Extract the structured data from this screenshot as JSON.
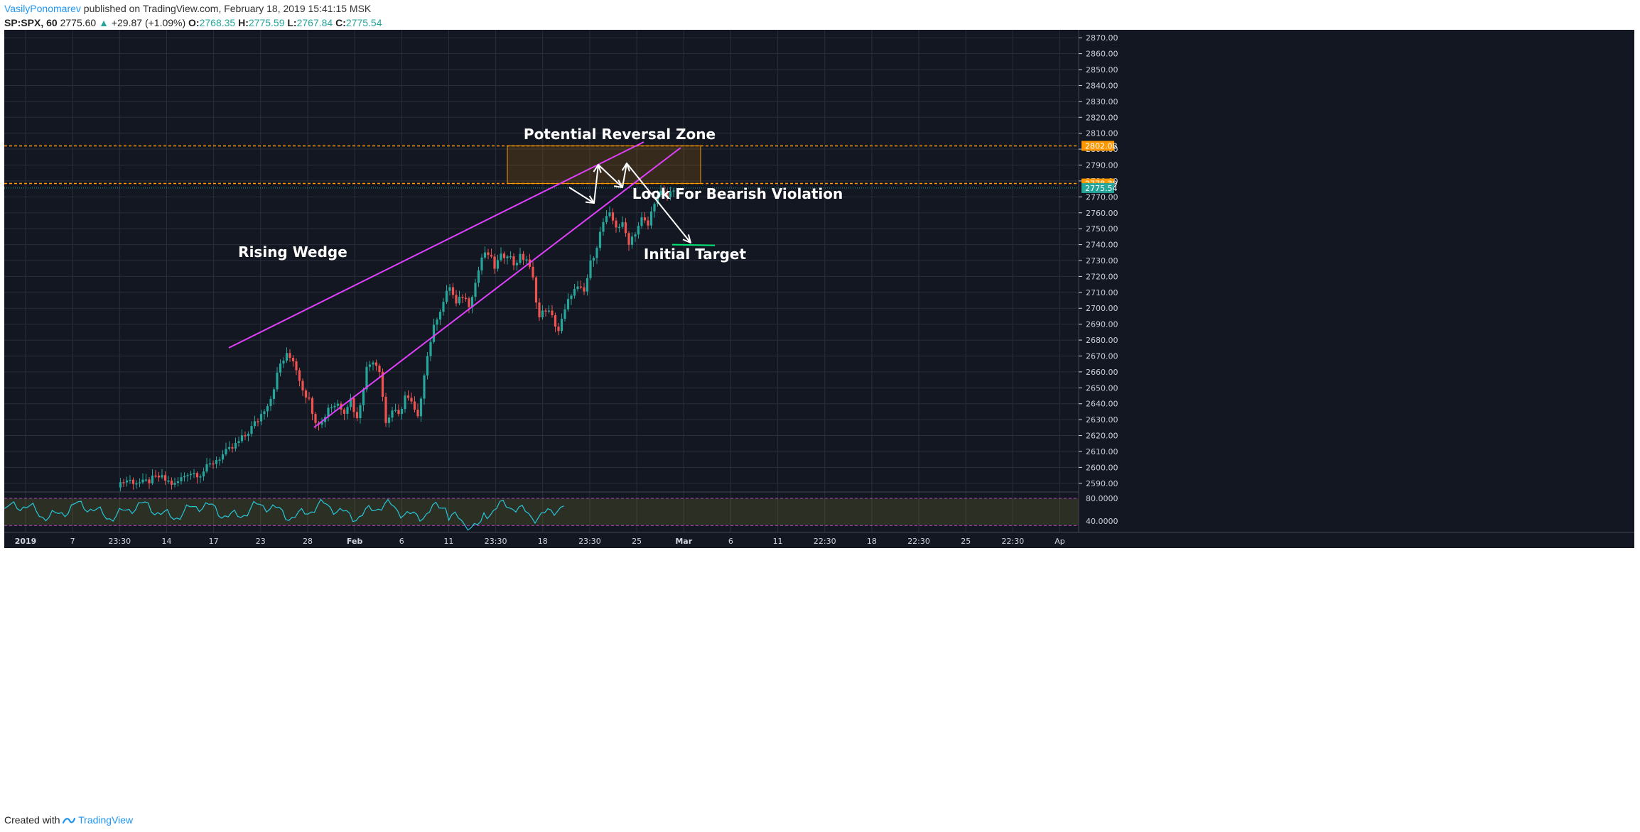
{
  "header": {
    "author": "VasilyPonomarev",
    "published_text": "published on TradingView.com, February 18, 2019 15:41:15 MSK",
    "symbol": "SP:SPX, 60",
    "last": "2775.60",
    "change_arrow": "▲",
    "change": "+29.87 (+1.09%)",
    "o_label": "O:",
    "o_value": "2768.35",
    "h_label": "H:",
    "h_value": "2775.59",
    "l_label": "L:",
    "l_value": "2767.84",
    "c_label": "C:",
    "c_value": "2775.54"
  },
  "footer": {
    "created_with": "Created with",
    "brand": "TradingView"
  },
  "colors": {
    "background": "#131722",
    "grid": "#2a2e39",
    "up": "#26a69a",
    "down": "#ef5350",
    "wedge": "#e040fb",
    "zone": "#ff9800",
    "target": "#00e676",
    "arrow": "#ffffff",
    "rsi": "#26c6da"
  },
  "chart_data": {
    "type": "candlestick",
    "symbol": "SP:SPX",
    "interval": "60",
    "price_axis": {
      "range": [
        2585,
        2875
      ],
      "ticks": [
        2590,
        2600,
        2610,
        2620,
        2630,
        2640,
        2650,
        2660,
        2670,
        2680,
        2690,
        2700,
        2710,
        2720,
        2730,
        2740,
        2750,
        2760,
        2770,
        2780,
        2790,
        2800,
        2810,
        2820,
        2830,
        2840,
        2850,
        2860,
        2870
      ],
      "tick_labels": [
        "2590.00",
        "2600.00",
        "2610.00",
        "2620.00",
        "2630.00",
        "2640.00",
        "2650.00",
        "2660.00",
        "2670.00",
        "2680.00",
        "2690.00",
        "2700.00",
        "2710.00",
        "2720.00",
        "2730.00",
        "2740.00",
        "2750.00",
        "2760.00",
        "2770.00",
        "2780.00",
        "2790.00",
        "2800.00",
        "2810.00",
        "2820.00",
        "2830.00",
        "2840.00",
        "2850.00",
        "2860.00",
        "2870.00"
      ],
      "price_tags": [
        {
          "label": "2802.08",
          "value": 2802.08,
          "color": "#ff9800"
        },
        {
          "label": "2778.39",
          "value": 2778.39,
          "color": "#ff9800"
        },
        {
          "label": "2775.54",
          "value": 2775.54,
          "color": "#26a69a"
        }
      ]
    },
    "time_axis": {
      "labels": [
        "2019",
        "7",
        "23:30",
        "14",
        "17",
        "23",
        "28",
        "Feb",
        "6",
        "11",
        "23:30",
        "18",
        "23:30",
        "25",
        "Mar",
        "6",
        "11",
        "22:30",
        "18",
        "22:30",
        "25",
        "22:30",
        "Ap"
      ],
      "bold": [
        "2019",
        "Feb",
        "Mar"
      ]
    },
    "price_path": [
      [
        0,
        2588
      ],
      [
        5,
        2592
      ],
      [
        10,
        2590
      ],
      [
        15,
        2594
      ],
      [
        20,
        2589
      ],
      [
        24,
        2597
      ],
      [
        28,
        2596
      ],
      [
        33,
        2605
      ],
      [
        38,
        2612
      ],
      [
        42,
        2620
      ],
      [
        46,
        2630
      ],
      [
        50,
        2644
      ],
      [
        53,
        2665
      ],
      [
        55,
        2670
      ],
      [
        57,
        2668
      ],
      [
        58,
        2662
      ],
      [
        60,
        2650
      ],
      [
        62,
        2642
      ],
      [
        64,
        2630
      ],
      [
        66,
        2628
      ],
      [
        68,
        2638
      ],
      [
        71,
        2640
      ],
      [
        73,
        2636
      ],
      [
        75,
        2643
      ],
      [
        77,
        2630
      ],
      [
        80,
        2662
      ],
      [
        82,
        2668
      ],
      [
        84,
        2662
      ],
      [
        86,
        2628
      ],
      [
        88,
        2636
      ],
      [
        90,
        2632
      ],
      [
        92,
        2645
      ],
      [
        94,
        2640
      ],
      [
        96,
        2630
      ],
      [
        98,
        2660
      ],
      [
        100,
        2680
      ],
      [
        102,
        2695
      ],
      [
        104,
        2704
      ],
      [
        106,
        2714
      ],
      [
        108,
        2702
      ],
      [
        110,
        2708
      ],
      [
        112,
        2703
      ],
      [
        114,
        2716
      ],
      [
        116,
        2732
      ],
      [
        118,
        2734
      ],
      [
        120,
        2726
      ],
      [
        122,
        2732
      ],
      [
        124,
        2735
      ],
      [
        126,
        2728
      ],
      [
        128,
        2732
      ],
      [
        130,
        2731
      ],
      [
        132,
        2718
      ],
      [
        134,
        2694
      ],
      [
        136,
        2700
      ],
      [
        138,
        2694
      ],
      [
        140,
        2686
      ],
      [
        142,
        2698
      ],
      [
        144,
        2710
      ],
      [
        146,
        2712
      ],
      [
        148,
        2710
      ],
      [
        150,
        2728
      ],
      [
        152,
        2740
      ],
      [
        154,
        2754
      ],
      [
        156,
        2758
      ],
      [
        158,
        2752
      ],
      [
        160,
        2752
      ],
      [
        162,
        2742
      ],
      [
        164,
        2748
      ],
      [
        166,
        2756
      ],
      [
        168,
        2752
      ],
      [
        170,
        2768
      ],
      [
        172,
        2772
      ],
      [
        174,
        2770
      ],
      [
        176,
        2775.6
      ]
    ],
    "annotations": {
      "rising_wedge_label": "Rising Wedge",
      "reversal_zone_label": "Potential Reversal Zone",
      "bearish_label": "Look For Bearish Violation",
      "target_label": "Initial Target",
      "reversal_zone": [
        2778.39,
        2802.08
      ],
      "target_level": 2740
    },
    "rsi": {
      "ticks": [
        80,
        40
      ],
      "tick_labels": [
        "80.0000",
        "40.0000"
      ],
      "range": [
        20,
        90
      ],
      "bands": [
        30,
        70
      ]
    }
  }
}
